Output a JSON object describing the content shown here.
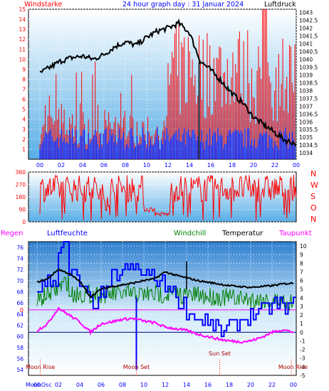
{
  "chart_data": [
    {
      "type": "line",
      "panel": "top",
      "title": "24 hour graph day : 31 Januar 2024",
      "left_label": "Windstarke",
      "right_label": "Luftdruck",
      "left_ticks": [
        "1",
        "2",
        "3",
        "4",
        "5",
        "6",
        "7",
        "8",
        "9",
        "10",
        "11",
        "12",
        "13",
        "14",
        "15"
      ],
      "right_ticks": [
        "1034",
        "1034.5",
        "1035",
        "1035.5",
        "1036",
        "1036.5",
        "1037",
        "1037.5",
        "1038",
        "1038.5",
        "1039",
        "1039.5",
        "1040",
        "1040.5",
        "1041",
        "1041.5",
        "1042",
        "1042.5",
        "1043"
      ],
      "left_range": [
        0,
        15
      ],
      "right_range": [
        1033.6,
        1043.2
      ],
      "x_ticks": [
        "00",
        "02",
        "04",
        "06",
        "08",
        "10",
        "12",
        "14",
        "16",
        "18",
        "20",
        "22",
        "00"
      ],
      "pressure_series": [
        1039.1,
        1039.5,
        1039.9,
        1040.1,
        1040.2,
        1040.0,
        1040.3,
        1040.8,
        1041.1,
        1040.9,
        1041.4,
        1041.8,
        1042.0,
        1042.3,
        1041.7,
        1039.9,
        1039.3,
        1038.6,
        1037.8,
        1037.2,
        1036.3,
        1035.8,
        1035.3,
        1034.8,
        1034.6
      ],
      "series": [
        {
          "name": "Luftdruck",
          "color": "#000000"
        },
        {
          "name": "Windstarke gust",
          "color": "#ff0000"
        },
        {
          "name": "Windstarke mean",
          "color": "#0000ff"
        }
      ]
    },
    {
      "type": "line",
      "panel": "direction",
      "left_ticks": [
        "0",
        "90",
        "180",
        "270",
        "360"
      ],
      "right_labels": [
        "N",
        "W",
        "S",
        "O",
        "N"
      ],
      "y_range": [
        0,
        360
      ],
      "series": [
        {
          "name": "Windrichtung",
          "color": "#ff0000"
        }
      ]
    },
    {
      "type": "line",
      "panel": "bottom",
      "legend": [
        "Regen",
        "Luftfeuchte",
        "Windchill",
        "Temperatur",
        "Taupunkt"
      ],
      "legend_colors": [
        "#ff00ff",
        "#0000ff",
        "#008000",
        "#000000",
        "#ff00ff"
      ],
      "left_ticks": [
        "54",
        "56",
        "58",
        "60",
        "62",
        "64",
        "66",
        "68",
        "70",
        "72",
        "74",
        "76"
      ],
      "left_range": [
        53,
        77
      ],
      "right_ticks": [
        "-5",
        "-4",
        "-3",
        "-2",
        "-1",
        "0",
        "1",
        "2",
        "3",
        "4",
        "5",
        "6",
        "7",
        "8",
        "9",
        "10"
      ],
      "right_range": [
        -5,
        10.5
      ],
      "rain_label": "0",
      "x_ticks": [
        "00",
        "02",
        "04",
        "06",
        "08",
        "10",
        "12",
        "14",
        "16",
        "18",
        "20",
        "22",
        "00"
      ],
      "moon_annotations": [
        {
          "text": "Moon Rise",
          "hour": 0.3
        },
        {
          "text": "Moon Set",
          "hour": 9.3
        },
        {
          "text": "Sun Set",
          "hour": 17.1
        },
        {
          "text": "Moon Rise",
          "hour": 23.8
        }
      ],
      "bottom_text": "MoonOsc"
    }
  ]
}
